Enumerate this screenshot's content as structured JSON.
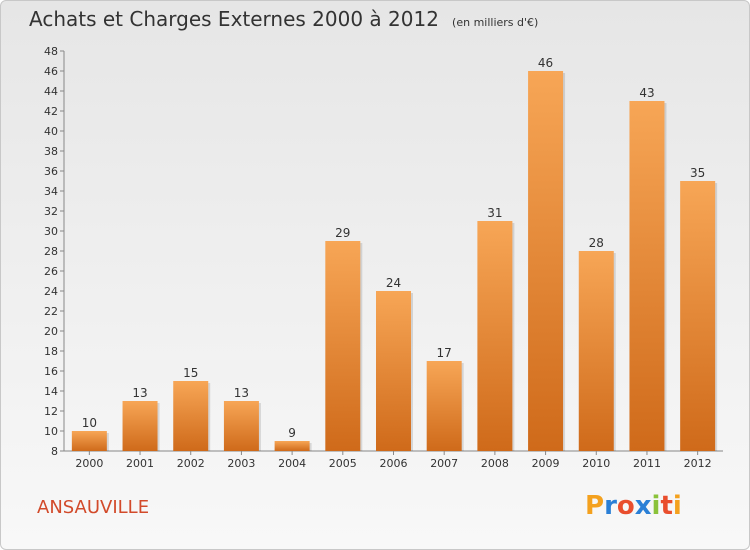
{
  "chart_data": {
    "type": "bar",
    "title": "Achats et Charges Externes 2000 à 2012",
    "unit_label": "(en milliers d'€)",
    "categories": [
      "2000",
      "2001",
      "2002",
      "2003",
      "2004",
      "2005",
      "2006",
      "2007",
      "2008",
      "2009",
      "2010",
      "2011",
      "2012"
    ],
    "values": [
      10,
      13,
      15,
      13,
      9,
      29,
      24,
      17,
      31,
      46,
      28,
      43,
      35
    ],
    "ylim": [
      8,
      48
    ],
    "yticks": [
      "8",
      "10",
      "12",
      "14",
      "16",
      "18",
      "20",
      "22",
      "24",
      "26",
      "28",
      "30",
      "32",
      "34",
      "36",
      "38",
      "40",
      "42",
      "44",
      "46",
      "48"
    ],
    "grid": false,
    "bar_color_top": "#f7a656",
    "bar_color_bottom": "#cf6a1a"
  },
  "footer": {
    "commune": "ANSAUVILLE",
    "logo_text": [
      "P",
      "r",
      "o",
      "x",
      "i",
      "t",
      "i"
    ],
    "logo_colors": [
      "#f4a11e",
      "#2a7fd6",
      "#e94e2d",
      "#2a7fd6",
      "#8ac23a",
      "#e94e2d",
      "#f4a11e"
    ]
  }
}
